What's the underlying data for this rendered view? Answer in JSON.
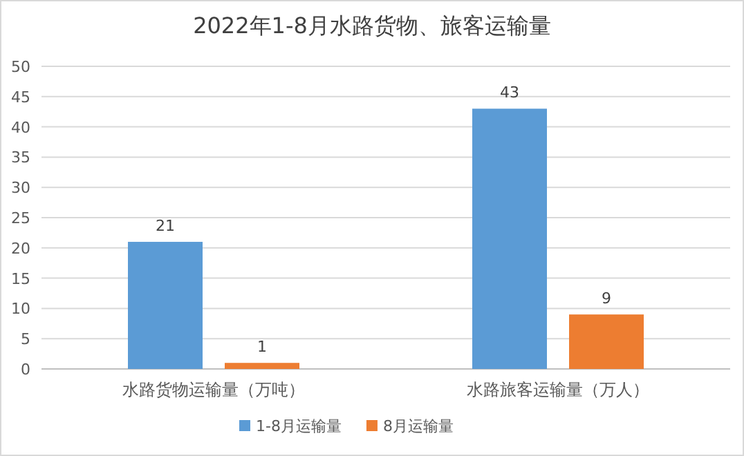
{
  "chart_data": {
    "type": "bar",
    "title": "2022年1-8月水路货物、旅客运输量",
    "categories": [
      "水路货物运输量（万吨）",
      "水路旅客运输量（万人）"
    ],
    "series": [
      {
        "name": "1-8月运输量",
        "color": "#5b9bd5",
        "values": [
          21,
          43
        ]
      },
      {
        "name": "8月运输量",
        "color": "#ed7d31",
        "values": [
          1,
          9
        ]
      }
    ],
    "ylim": [
      0,
      50
    ],
    "yticks": [
      0,
      5,
      10,
      15,
      20,
      25,
      30,
      35,
      40,
      45,
      50
    ],
    "grid": "y",
    "legend": "bottom",
    "data_labels": true
  }
}
